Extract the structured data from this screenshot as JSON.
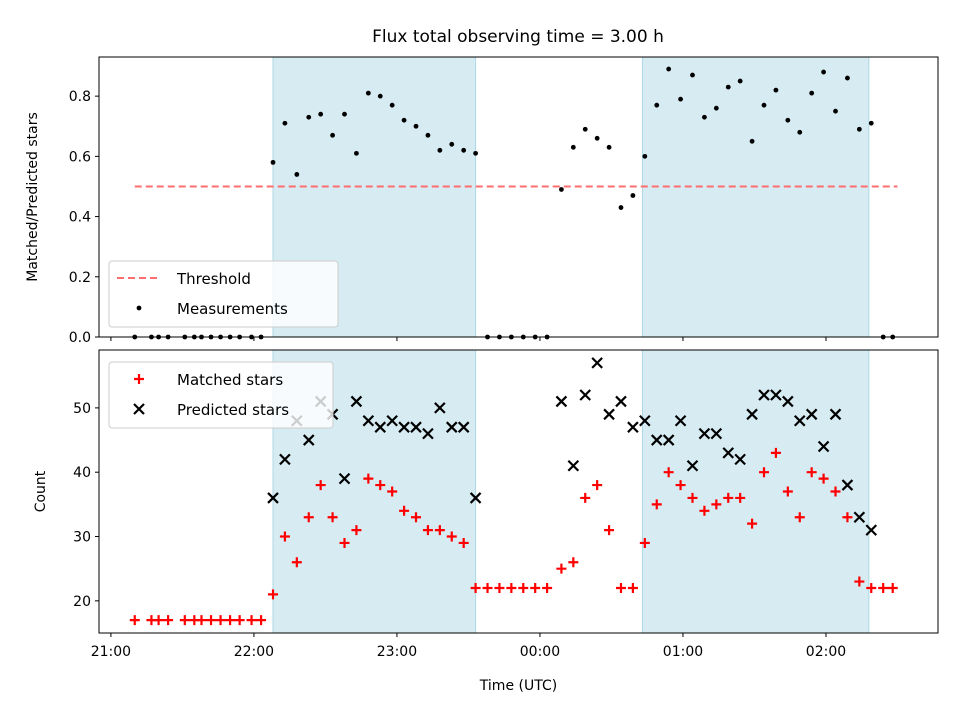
{
  "title": "Flux total observing time = 3.00 h",
  "colors": {
    "shade": "#add8e6",
    "threshold": "#ff6e6e",
    "matched": "#ff0000",
    "predicted": "#000000",
    "measurement": "#000000"
  },
  "chart_data": [
    {
      "type": "scatter",
      "ylabel": "Matched/Predicted stars",
      "ylim": [
        0,
        0.93
      ],
      "yticks": [
        {
          "v": 0.0,
          "label": "0.0"
        },
        {
          "v": 0.2,
          "label": "0.2"
        },
        {
          "v": 0.4,
          "label": "0.4"
        },
        {
          "v": 0.6,
          "label": "0.6"
        },
        {
          "v": 0.8,
          "label": "0.8"
        }
      ],
      "xlim": [
        "20:55",
        "02:47"
      ],
      "shaded_intervals": [
        [
          "22:08",
          "23:33"
        ],
        [
          "00:43",
          "02:18"
        ]
      ],
      "threshold": {
        "label": "Threshold",
        "y": 0.5,
        "x_start": "21:10",
        "x_end": "02:30"
      },
      "legend": {
        "placement": "lower-left",
        "entries": [
          "Threshold",
          "Measurements"
        ]
      },
      "series": [
        {
          "name": "Measurements",
          "marker": "dot",
          "points": [
            [
              "21:10",
              0
            ],
            [
              "21:17",
              0
            ],
            [
              "21:20",
              0
            ],
            [
              "21:24",
              0
            ],
            [
              "21:31",
              0
            ],
            [
              "21:35",
              0
            ],
            [
              "21:38",
              0
            ],
            [
              "21:42",
              0
            ],
            [
              "21:46",
              0
            ],
            [
              "21:50",
              0
            ],
            [
              "21:54",
              0
            ],
            [
              "21:59",
              0
            ],
            [
              "22:03",
              0
            ],
            [
              "22:08",
              0.58
            ],
            [
              "22:13",
              0.71
            ],
            [
              "22:18",
              0.54
            ],
            [
              "22:23",
              0.73
            ],
            [
              "22:28",
              0.74
            ],
            [
              "22:33",
              0.67
            ],
            [
              "22:38",
              0.74
            ],
            [
              "22:43",
              0.61
            ],
            [
              "22:48",
              0.81
            ],
            [
              "22:53",
              0.8
            ],
            [
              "22:58",
              0.77
            ],
            [
              "23:03",
              0.72
            ],
            [
              "23:08",
              0.7
            ],
            [
              "23:13",
              0.67
            ],
            [
              "23:18",
              0.62
            ],
            [
              "23:23",
              0.64
            ],
            [
              "23:28",
              0.62
            ],
            [
              "23:33",
              0.61
            ],
            [
              "23:38",
              0
            ],
            [
              "23:43",
              0
            ],
            [
              "23:48",
              0
            ],
            [
              "23:53",
              0
            ],
            [
              "23:58",
              0
            ],
            [
              "00:03",
              0
            ],
            [
              "00:09",
              0.49
            ],
            [
              "00:14",
              0.63
            ],
            [
              "00:19",
              0.69
            ],
            [
              "00:24",
              0.66
            ],
            [
              "00:29",
              0.63
            ],
            [
              "00:34",
              0.43
            ],
            [
              "00:39",
              0.47
            ],
            [
              "00:44",
              0.6
            ],
            [
              "00:49",
              0.77
            ],
            [
              "00:54",
              0.89
            ],
            [
              "00:59",
              0.79
            ],
            [
              "01:04",
              0.87
            ],
            [
              "01:09",
              0.73
            ],
            [
              "01:14",
              0.76
            ],
            [
              "01:19",
              0.83
            ],
            [
              "01:24",
              0.85
            ],
            [
              "01:29",
              0.65
            ],
            [
              "01:34",
              0.77
            ],
            [
              "01:39",
              0.82
            ],
            [
              "01:44",
              0.72
            ],
            [
              "01:49",
              0.68
            ],
            [
              "01:54",
              0.81
            ],
            [
              "01:59",
              0.88
            ],
            [
              "02:04",
              0.75
            ],
            [
              "02:09",
              0.86
            ],
            [
              "02:14",
              0.69
            ],
            [
              "02:19",
              0.71
            ],
            [
              "02:24",
              0
            ],
            [
              "02:28",
              0
            ]
          ]
        }
      ]
    },
    {
      "type": "scatter",
      "xlabel": "Time (UTC)",
      "ylabel": "Count",
      "ylim": [
        15,
        59
      ],
      "yticks": [
        {
          "v": 20,
          "label": "20"
        },
        {
          "v": 30,
          "label": "30"
        },
        {
          "v": 40,
          "label": "40"
        },
        {
          "v": 50,
          "label": "50"
        }
      ],
      "xlim": [
        "20:55",
        "02:47"
      ],
      "xticks": [
        {
          "t": "21:00",
          "label": "21:00"
        },
        {
          "t": "22:00",
          "label": "22:00"
        },
        {
          "t": "23:00",
          "label": "23:00"
        },
        {
          "t": "00:00",
          "label": "00:00"
        },
        {
          "t": "01:00",
          "label": "01:00"
        },
        {
          "t": "02:00",
          "label": "02:00"
        }
      ],
      "shaded_intervals": [
        [
          "22:08",
          "23:33"
        ],
        [
          "00:43",
          "02:18"
        ]
      ],
      "legend": {
        "placement": "upper-left",
        "entries": [
          "Matched stars",
          "Predicted stars"
        ]
      },
      "series": [
        {
          "name": "Matched stars",
          "marker": "plus",
          "points": [
            [
              "21:10",
              17
            ],
            [
              "21:17",
              17
            ],
            [
              "21:20",
              17
            ],
            [
              "21:24",
              17
            ],
            [
              "21:31",
              17
            ],
            [
              "21:35",
              17
            ],
            [
              "21:38",
              17
            ],
            [
              "21:42",
              17
            ],
            [
              "21:46",
              17
            ],
            [
              "21:50",
              17
            ],
            [
              "21:54",
              17
            ],
            [
              "21:59",
              17
            ],
            [
              "22:03",
              17
            ],
            [
              "22:08",
              21
            ],
            [
              "22:13",
              30
            ],
            [
              "22:18",
              26
            ],
            [
              "22:23",
              33
            ],
            [
              "22:28",
              38
            ],
            [
              "22:33",
              33
            ],
            [
              "22:38",
              29
            ],
            [
              "22:43",
              31
            ],
            [
              "22:48",
              39
            ],
            [
              "22:53",
              38
            ],
            [
              "22:58",
              37
            ],
            [
              "23:03",
              34
            ],
            [
              "23:08",
              33
            ],
            [
              "23:13",
              31
            ],
            [
              "23:18",
              31
            ],
            [
              "23:23",
              30
            ],
            [
              "23:28",
              29
            ],
            [
              "23:33",
              22
            ],
            [
              "23:38",
              22
            ],
            [
              "23:43",
              22
            ],
            [
              "23:48",
              22
            ],
            [
              "23:53",
              22
            ],
            [
              "23:58",
              22
            ],
            [
              "00:03",
              22
            ],
            [
              "00:09",
              25
            ],
            [
              "00:14",
              26
            ],
            [
              "00:19",
              36
            ],
            [
              "00:24",
              38
            ],
            [
              "00:29",
              31
            ],
            [
              "00:34",
              22
            ],
            [
              "00:39",
              22
            ],
            [
              "00:44",
              29
            ],
            [
              "00:49",
              35
            ],
            [
              "00:54",
              40
            ],
            [
              "00:59",
              38
            ],
            [
              "01:04",
              36
            ],
            [
              "01:09",
              34
            ],
            [
              "01:14",
              35
            ],
            [
              "01:19",
              36
            ],
            [
              "01:24",
              36
            ],
            [
              "01:29",
              32
            ],
            [
              "01:34",
              40
            ],
            [
              "01:39",
              43
            ],
            [
              "01:44",
              37
            ],
            [
              "01:49",
              33
            ],
            [
              "01:54",
              40
            ],
            [
              "01:59",
              39
            ],
            [
              "02:04",
              37
            ],
            [
              "02:09",
              33
            ],
            [
              "02:14",
              23
            ],
            [
              "02:19",
              22
            ],
            [
              "02:24",
              22
            ],
            [
              "02:28",
              22
            ]
          ]
        },
        {
          "name": "Predicted stars",
          "marker": "x",
          "points": [
            [
              "22:08",
              36
            ],
            [
              "22:13",
              42
            ],
            [
              "22:18",
              48
            ],
            [
              "22:23",
              45
            ],
            [
              "22:28",
              51
            ],
            [
              "22:33",
              49
            ],
            [
              "22:38",
              39
            ],
            [
              "22:43",
              51
            ],
            [
              "22:48",
              48
            ],
            [
              "22:53",
              47
            ],
            [
              "22:58",
              48
            ],
            [
              "23:03",
              47
            ],
            [
              "23:08",
              47
            ],
            [
              "23:13",
              46
            ],
            [
              "23:18",
              50
            ],
            [
              "23:23",
              47
            ],
            [
              "23:28",
              47
            ],
            [
              "23:33",
              36
            ],
            [
              "00:09",
              51
            ],
            [
              "00:14",
              41
            ],
            [
              "00:19",
              52
            ],
            [
              "00:24",
              57
            ],
            [
              "00:29",
              49
            ],
            [
              "00:34",
              51
            ],
            [
              "00:39",
              47
            ],
            [
              "00:44",
              48
            ],
            [
              "00:49",
              45
            ],
            [
              "00:54",
              45
            ],
            [
              "00:59",
              48
            ],
            [
              "01:04",
              41
            ],
            [
              "01:09",
              46
            ],
            [
              "01:14",
              46
            ],
            [
              "01:19",
              43
            ],
            [
              "01:24",
              42
            ],
            [
              "01:29",
              49
            ],
            [
              "01:34",
              52
            ],
            [
              "01:39",
              52
            ],
            [
              "01:44",
              51
            ],
            [
              "01:49",
              48
            ],
            [
              "01:54",
              49
            ],
            [
              "01:59",
              44
            ],
            [
              "02:04",
              49
            ],
            [
              "02:09",
              38
            ],
            [
              "02:14",
              33
            ],
            [
              "02:19",
              31
            ]
          ]
        }
      ]
    }
  ]
}
